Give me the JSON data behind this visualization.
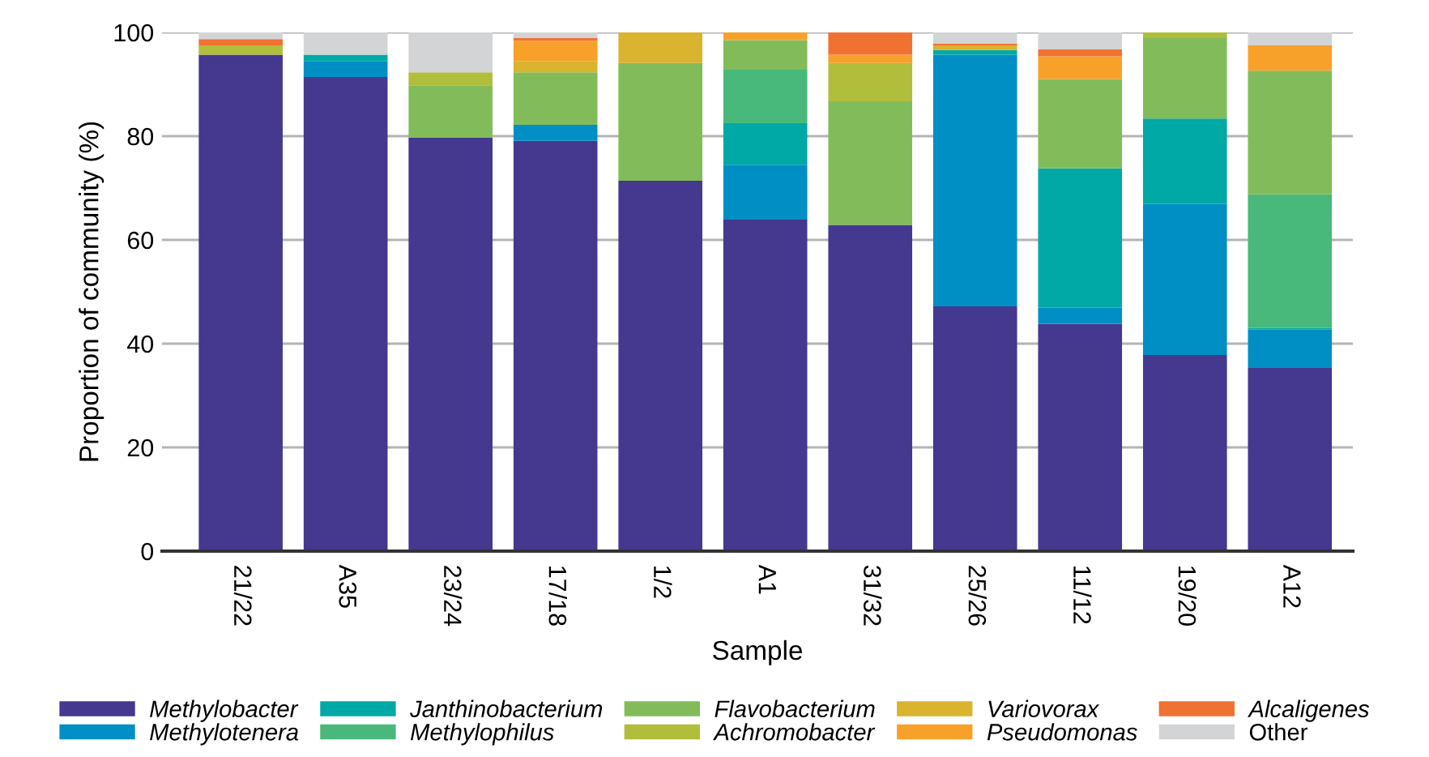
{
  "chart_data": {
    "type": "bar",
    "stacked": true,
    "xlabel": "Sample",
    "ylabel": "Proportion of community (%)",
    "categories": [
      "21/22",
      "A35",
      "23/24",
      "17/18",
      "1/2",
      "A1",
      "31/32",
      "25/26",
      "11/12",
      "19/20",
      "A12"
    ],
    "ylim": [
      0,
      100
    ],
    "yticks": [
      0,
      20,
      40,
      60,
      80,
      100
    ],
    "grid": "y",
    "legend": "bottom",
    "series": [
      {
        "name": "Methylobacter",
        "color": "#44388f",
        "values": [
          95.7,
          91.4,
          79.7,
          79.1,
          71.4,
          63.9,
          62.9,
          47.2,
          43.8,
          37.8,
          35.3
        ]
      },
      {
        "name": "Methylotenera",
        "color": "#008fc4",
        "values": [
          null,
          3.1,
          null,
          3.1,
          null,
          10.6,
          null,
          48.5,
          3.1,
          29.1,
          7.4
        ]
      },
      {
        "name": "Janthinobacterium",
        "color": "#00a9a5",
        "values": [
          null,
          1.2,
          null,
          null,
          null,
          8.0,
          null,
          0.9,
          26.9,
          16.5,
          0.3
        ]
      },
      {
        "name": "Methylophilus",
        "color": "#49b87b",
        "values": [
          null,
          null,
          null,
          null,
          null,
          10.3,
          null,
          null,
          null,
          null,
          25.8
        ]
      },
      {
        "name": "Flavobacterium",
        "color": "#82bc5a",
        "values": [
          null,
          null,
          10.1,
          10.1,
          22.7,
          5.7,
          23.8,
          null,
          17.2,
          15.5,
          23.8
        ]
      },
      {
        "name": "Achromobacter",
        "color": "#b0be3c",
        "values": [
          1.8,
          null,
          2.5,
          null,
          null,
          null,
          7.4,
          null,
          null,
          1.1,
          null
        ]
      },
      {
        "name": "Variovorax",
        "color": "#dab32f",
        "values": [
          null,
          null,
          null,
          2.2,
          5.9,
          null,
          null,
          0.9,
          null,
          null,
          null
        ]
      },
      {
        "name": "Pseudomonas",
        "color": "#f7a12b",
        "values": [
          null,
          null,
          null,
          3.9,
          null,
          1.5,
          1.6,
          null,
          4.4,
          null,
          4.9
        ]
      },
      {
        "name": "Alcaligenes",
        "color": "#f07232",
        "values": [
          1.2,
          null,
          null,
          0.5,
          null,
          null,
          4.3,
          0.3,
          1.3,
          null,
          null
        ]
      },
      {
        "name": "Other",
        "color": "#d3d4d5",
        "values": [
          1.3,
          4.3,
          7.7,
          1.1,
          null,
          null,
          null,
          2.2,
          3.3,
          null,
          2.5
        ]
      }
    ]
  }
}
